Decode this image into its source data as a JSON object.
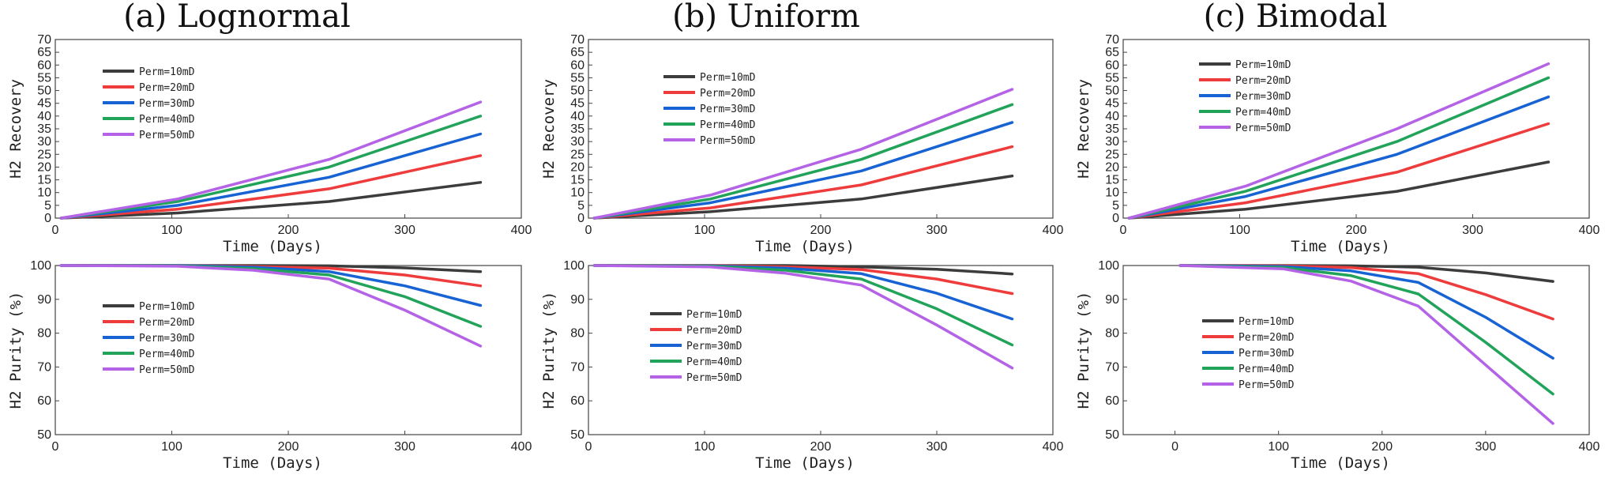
{
  "colors": {
    "Perm=10mD": "#3c3c3c",
    "Perm=20mD": "#ee3b3b",
    "Perm=30mD": "#1763d4",
    "Perm=40mD": "#22a35a",
    "Perm=50mD": "#b463e6"
  },
  "chart_data": [
    {
      "id": "a-recovery",
      "type": "line",
      "title": "(a) Lognormal",
      "xlabel": "Time (Days)",
      "ylabel": "H2 Recovery",
      "xlim": [
        0,
        400
      ],
      "ylim": [
        0,
        70
      ],
      "xticks": [
        0,
        100,
        200,
        300,
        400
      ],
      "yticks": [
        0,
        5,
        10,
        15,
        20,
        25,
        30,
        35,
        40,
        45,
        50,
        55,
        60,
        65,
        70
      ],
      "legend": "upper-left",
      "x": [
        5,
        105,
        235,
        365
      ],
      "series": [
        {
          "name": "Perm=10mD",
          "values": [
            0,
            2,
            6.5,
            14
          ]
        },
        {
          "name": "Perm=20mD",
          "values": [
            0,
            3.5,
            11.5,
            24.5
          ]
        },
        {
          "name": "Perm=30mD",
          "values": [
            0,
            5,
            16,
            33
          ]
        },
        {
          "name": "Perm=40mD",
          "values": [
            0,
            6.5,
            20,
            40
          ]
        },
        {
          "name": "Perm=50mD",
          "values": [
            0,
            7.5,
            23,
            45.5
          ]
        }
      ]
    },
    {
      "id": "b-recovery",
      "type": "line",
      "title": "(b) Uniform",
      "xlabel": "Time (Days)",
      "ylabel": "H2 Recovery",
      "xlim": [
        0,
        400
      ],
      "ylim": [
        0,
        70
      ],
      "xticks": [
        0,
        100,
        200,
        300,
        400
      ],
      "yticks": [
        0,
        5,
        10,
        15,
        20,
        25,
        30,
        35,
        40,
        45,
        50,
        55,
        60,
        65,
        70
      ],
      "legend": "upper-left",
      "x": [
        5,
        105,
        235,
        365
      ],
      "series": [
        {
          "name": "Perm=10mD",
          "values": [
            0,
            2.5,
            7.5,
            16.5
          ]
        },
        {
          "name": "Perm=20mD",
          "values": [
            0,
            4,
            13,
            28
          ]
        },
        {
          "name": "Perm=30mD",
          "values": [
            0,
            6,
            18.5,
            37.5
          ]
        },
        {
          "name": "Perm=40mD",
          "values": [
            0,
            7.5,
            23,
            44.5
          ]
        },
        {
          "name": "Perm=50mD",
          "values": [
            0,
            9,
            27,
            50.5
          ]
        }
      ]
    },
    {
      "id": "c-recovery",
      "type": "line",
      "title": "(c) Bimodal",
      "xlabel": "Time (Days)",
      "ylabel": "H2 Recovery",
      "xlim": [
        0,
        400
      ],
      "ylim": [
        0,
        70
      ],
      "xticks": [
        0,
        100,
        200,
        300,
        400
      ],
      "yticks": [
        0,
        5,
        10,
        15,
        20,
        25,
        30,
        35,
        40,
        45,
        50,
        55,
        60,
        65,
        70
      ],
      "legend": "upper-left",
      "x": [
        5,
        105,
        235,
        365
      ],
      "series": [
        {
          "name": "Perm=10mD",
          "values": [
            0,
            3.5,
            10.5,
            22
          ]
        },
        {
          "name": "Perm=20mD",
          "values": [
            0,
            6,
            18,
            37
          ]
        },
        {
          "name": "Perm=30mD",
          "values": [
            0,
            8.5,
            25,
            47.5
          ]
        },
        {
          "name": "Perm=40mD",
          "values": [
            0,
            10.5,
            30,
            55
          ]
        },
        {
          "name": "Perm=50mD",
          "values": [
            0,
            12.5,
            35,
            60.5
          ]
        }
      ]
    },
    {
      "id": "a-purity",
      "type": "line",
      "xlabel": "Time (Days)",
      "ylabel": "H2 Purity (%)",
      "xlim": [
        0,
        400
      ],
      "ylim": [
        50,
        100
      ],
      "xticks": [
        0,
        100,
        200,
        300,
        400
      ],
      "yticks": [
        50,
        60,
        70,
        80,
        90,
        100
      ],
      "legend": "center-left",
      "x": [
        5,
        105,
        170,
        235,
        300,
        365
      ],
      "series": [
        {
          "name": "Perm=10mD",
          "values": [
            100,
            100,
            100,
            99.9,
            99.3,
            98.2
          ]
        },
        {
          "name": "Perm=20mD",
          "values": [
            100,
            100,
            99.7,
            99.2,
            97.2,
            94
          ]
        },
        {
          "name": "Perm=30mD",
          "values": [
            100,
            100,
            99.5,
            98.2,
            94,
            88.2
          ]
        },
        {
          "name": "Perm=40mD",
          "values": [
            100,
            99.9,
            99.1,
            97.2,
            90.8,
            82
          ]
        },
        {
          "name": "Perm=50mD",
          "values": [
            100,
            99.8,
            98.6,
            96,
            86.8,
            76.2
          ]
        }
      ]
    },
    {
      "id": "b-purity",
      "type": "line",
      "xlabel": "Time (Days)",
      "ylabel": "H2 Purity (%)",
      "xlim": [
        0,
        400
      ],
      "ylim": [
        50,
        100
      ],
      "xticks": [
        0,
        100,
        200,
        300,
        400
      ],
      "yticks": [
        50,
        60,
        70,
        80,
        90,
        100
      ],
      "legend": "center-left",
      "x": [
        5,
        105,
        170,
        235,
        300,
        365
      ],
      "series": [
        {
          "name": "Perm=10mD",
          "values": [
            100,
            100,
            100,
            99.6,
            98.9,
            97.5
          ]
        },
        {
          "name": "Perm=20mD",
          "values": [
            100,
            100,
            99.6,
            98.8,
            96,
            91.7
          ]
        },
        {
          "name": "Perm=30mD",
          "values": [
            100,
            99.9,
            99.2,
            97.6,
            91.8,
            84.2
          ]
        },
        {
          "name": "Perm=40mD",
          "values": [
            100,
            99.8,
            98.6,
            96,
            87.2,
            76.5
          ]
        },
        {
          "name": "Perm=50mD",
          "values": [
            100,
            99.6,
            97.7,
            94.2,
            82.4,
            69.7
          ]
        }
      ]
    },
    {
      "id": "c-purity",
      "type": "line",
      "xlabel": "Time (Days)",
      "ylabel": "H2 Purity (%)",
      "xlim": [
        -50,
        400
      ],
      "ylim": [
        50,
        100
      ],
      "xticks": [
        0,
        100,
        200,
        300,
        400
      ],
      "yticks": [
        50,
        60,
        70,
        80,
        90,
        100
      ],
      "legend": "center-left",
      "x": [
        5,
        105,
        170,
        235,
        300,
        365
      ],
      "series": [
        {
          "name": "Perm=10mD",
          "values": [
            100,
            100,
            99.9,
            99.5,
            97.8,
            95.3
          ]
        },
        {
          "name": "Perm=20mD",
          "values": [
            100,
            99.9,
            99.4,
            97.6,
            91.4,
            84.2
          ]
        },
        {
          "name": "Perm=30mD",
          "values": [
            100,
            99.7,
            98.4,
            95,
            84.7,
            72.6
          ]
        },
        {
          "name": "Perm=40mD",
          "values": [
            100,
            99.4,
            97,
            91.6,
            77.3,
            62
          ]
        },
        {
          "name": "Perm=50mD",
          "values": [
            100,
            99,
            95.4,
            88,
            70.6,
            53.3
          ]
        }
      ]
    }
  ]
}
